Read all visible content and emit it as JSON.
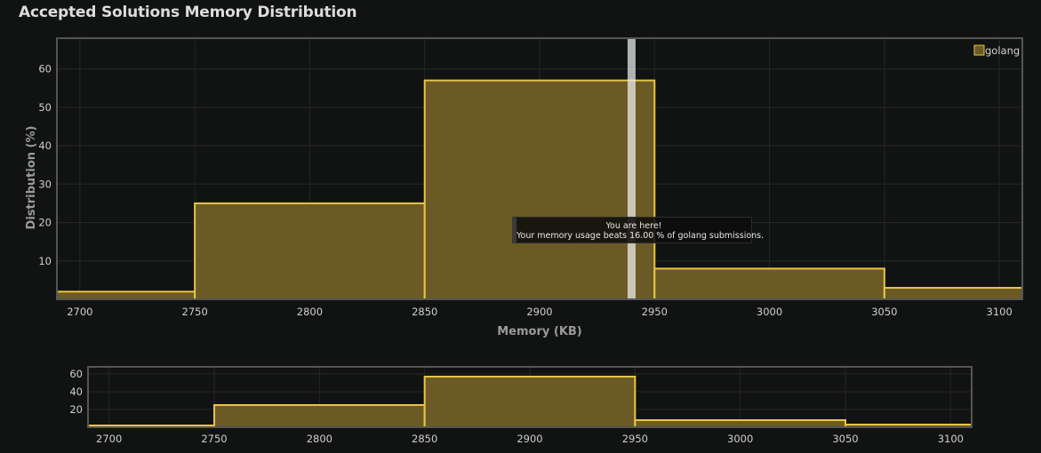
{
  "title": "Accepted Solutions Memory Distribution",
  "tooltip": {
    "line1": "You are here!",
    "line2": "Your memory usage beats 16.00 % of golang submissions."
  },
  "chart_data": [
    {
      "type": "histogram",
      "title": "",
      "xlabel": "Memory (KB)",
      "ylabel": "Distribution (%)",
      "xlim": [
        2690,
        3110
      ],
      "ylim": [
        0,
        68
      ],
      "x_ticks": [
        2700,
        2750,
        2800,
        2850,
        2900,
        2950,
        3000,
        3050,
        3100
      ],
      "y_ticks": [
        10,
        20,
        30,
        40,
        50,
        60
      ],
      "legend": "top-right",
      "grid": true,
      "series": [
        {
          "name": "golang",
          "bins": [
            {
              "from": 2690,
              "to": 2750,
              "value": 2.0
            },
            {
              "from": 2750,
              "to": 2850,
              "value": 25.0
            },
            {
              "from": 2850,
              "to": 2950,
              "value": 57.0
            },
            {
              "from": 2950,
              "to": 3050,
              "value": 8.0
            },
            {
              "from": 3050,
              "to": 3110,
              "value": 3.0
            }
          ]
        }
      ],
      "marker": {
        "x": 2940
      }
    },
    {
      "type": "histogram",
      "title": "",
      "xlabel": "",
      "ylabel": "",
      "xlim": [
        2690,
        3110
      ],
      "ylim": [
        0,
        68
      ],
      "x_ticks": [
        2700,
        2750,
        2800,
        2850,
        2900,
        2950,
        3000,
        3050,
        3100
      ],
      "y_ticks": [
        20,
        40,
        60
      ],
      "grid": true,
      "series": [
        {
          "name": "golang",
          "bins": [
            {
              "from": 2690,
              "to": 2750,
              "value": 2.0
            },
            {
              "from": 2750,
              "to": 2850,
              "value": 25.0
            },
            {
              "from": 2850,
              "to": 2950,
              "value": 57.0
            },
            {
              "from": 2950,
              "to": 3050,
              "value": 8.0
            },
            {
              "from": 3050,
              "to": 3110,
              "value": 3.0
            }
          ]
        }
      ]
    }
  ],
  "colors": {
    "bar_fill": "#6b5a26",
    "bar_stroke": "#e8c547",
    "grid": "#262626",
    "frame": "#555555",
    "marker": "#efefef"
  }
}
